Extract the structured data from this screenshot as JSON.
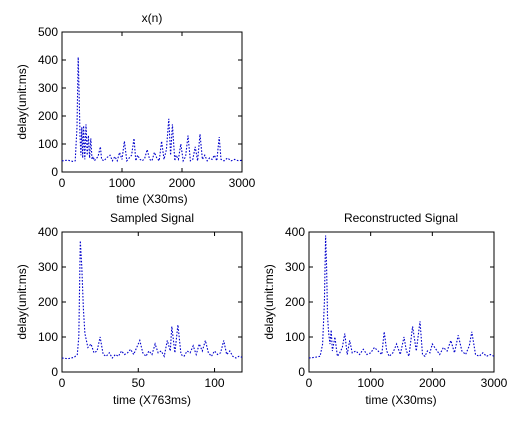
{
  "chart_data": [
    {
      "type": "line",
      "title": "x(n)",
      "xlabel": "time (X30ms)",
      "ylabel": "delay(unit:ms)",
      "xlim": [
        0,
        3000
      ],
      "ylim": [
        0,
        500
      ],
      "xticks": [
        0,
        1000,
        2000,
        3000
      ],
      "yticks": [
        0,
        100,
        200,
        300,
        400,
        500
      ],
      "grid": false,
      "series": [
        {
          "color": "#0000cc",
          "x": [
            0,
            100,
            180,
            220,
            250,
            270,
            285,
            300,
            315,
            330,
            345,
            360,
            380,
            400,
            420,
            440,
            460,
            480,
            500,
            520,
            540,
            560,
            600,
            640,
            660,
            700,
            740,
            800,
            840,
            880,
            920,
            960,
            1000,
            1040,
            1080,
            1120,
            1160,
            1200,
            1230,
            1260,
            1300,
            1340,
            1380,
            1420,
            1460,
            1500,
            1540,
            1580,
            1620,
            1660,
            1700,
            1740,
            1780,
            1810,
            1840,
            1880,
            1900,
            1940,
            1980,
            2020,
            2060,
            2100,
            2140,
            2180,
            2220,
            2260,
            2300,
            2340,
            2380,
            2420,
            2460,
            2500,
            2540,
            2580,
            2620,
            2650,
            2700,
            2760,
            2820,
            2880,
            2940,
            3000
          ],
          "y": [
            40,
            42,
            38,
            40,
            160,
            410,
            280,
            130,
            60,
            160,
            50,
            165,
            45,
            170,
            60,
            130,
            50,
            120,
            45,
            55,
            40,
            45,
            55,
            90,
            45,
            40,
            50,
            60,
            40,
            55,
            40,
            70,
            45,
            110,
            40,
            50,
            60,
            120,
            40,
            60,
            45,
            40,
            50,
            80,
            45,
            40,
            70,
            50,
            40,
            110,
            45,
            80,
            190,
            60,
            170,
            40,
            60,
            45,
            100,
            40,
            55,
            130,
            40,
            45,
            90,
            40,
            135,
            45,
            60,
            40,
            50,
            45,
            60,
            40,
            125,
            45,
            40,
            50,
            40,
            45,
            40,
            42
          ]
        }
      ]
    },
    {
      "type": "line",
      "title": "Sampled Signal",
      "xlabel": "time (X763ms)",
      "ylabel": "delay(unit:ms)",
      "xlim": [
        0,
        118
      ],
      "ylim": [
        0,
        400
      ],
      "xticks": [
        0,
        50,
        100
      ],
      "yticks": [
        0,
        100,
        200,
        300,
        400
      ],
      "grid": false,
      "series": [
        {
          "color": "#0000cc",
          "x": [
            0,
            4,
            8,
            10,
            11,
            12,
            13,
            14,
            15,
            17,
            19,
            21,
            23,
            25,
            27,
            29,
            31,
            33,
            35,
            37,
            39,
            41,
            43,
            45,
            47,
            49,
            51,
            53,
            55,
            57,
            59,
            61,
            63,
            65,
            67,
            69,
            71,
            72,
            74,
            76,
            78,
            80,
            82,
            84,
            86,
            88,
            90,
            92,
            94,
            96,
            98,
            100,
            102,
            104,
            106,
            108,
            110,
            112,
            114,
            116,
            118
          ],
          "y": [
            40,
            38,
            42,
            50,
            100,
            375,
            300,
            180,
            110,
            70,
            80,
            55,
            60,
            100,
            50,
            45,
            55,
            40,
            50,
            45,
            60,
            50,
            55,
            65,
            50,
            70,
            90,
            55,
            45,
            60,
            50,
            80,
            55,
            60,
            45,
            90,
            60,
            130,
            55,
            135,
            50,
            45,
            60,
            55,
            75,
            50,
            80,
            60,
            90,
            55,
            45,
            60,
            50,
            55,
            90,
            50,
            60,
            45,
            40,
            45,
            42
          ]
        }
      ]
    },
    {
      "type": "line",
      "title": "Reconstructed Signal",
      "xlabel": "time (X30ms)",
      "ylabel": "delay(unit:ms)",
      "xlim": [
        0,
        3000
      ],
      "ylim": [
        0,
        400
      ],
      "xticks": [
        0,
        1000,
        2000,
        3000
      ],
      "yticks": [
        0,
        100,
        200,
        300,
        400
      ],
      "grid": false,
      "series": [
        {
          "color": "#0000cc",
          "x": [
            0,
            100,
            180,
            220,
            250,
            270,
            285,
            300,
            320,
            340,
            360,
            380,
            420,
            460,
            500,
            540,
            580,
            620,
            660,
            700,
            760,
            820,
            880,
            940,
            1000,
            1060,
            1120,
            1180,
            1220,
            1260,
            1300,
            1360,
            1420,
            1480,
            1540,
            1580,
            1620,
            1680,
            1740,
            1800,
            1840,
            1880,
            1920,
            1960,
            2000,
            2060,
            2120,
            2180,
            2240,
            2300,
            2360,
            2420,
            2480,
            2540,
            2600,
            2640,
            2700,
            2760,
            2820,
            2880,
            2940,
            3000
          ],
          "y": [
            40,
            42,
            45,
            80,
            200,
            390,
            300,
            160,
            110,
            80,
            120,
            60,
            100,
            45,
            55,
            70,
            110,
            50,
            90,
            55,
            60,
            50,
            65,
            50,
            55,
            70,
            60,
            50,
            115,
            60,
            45,
            55,
            80,
            50,
            100,
            60,
            45,
            130,
            60,
            145,
            50,
            45,
            60,
            55,
            80,
            65,
            50,
            70,
            60,
            90,
            55,
            105,
            60,
            50,
            75,
            115,
            50,
            45,
            55,
            45,
            50,
            45
          ]
        }
      ]
    }
  ]
}
